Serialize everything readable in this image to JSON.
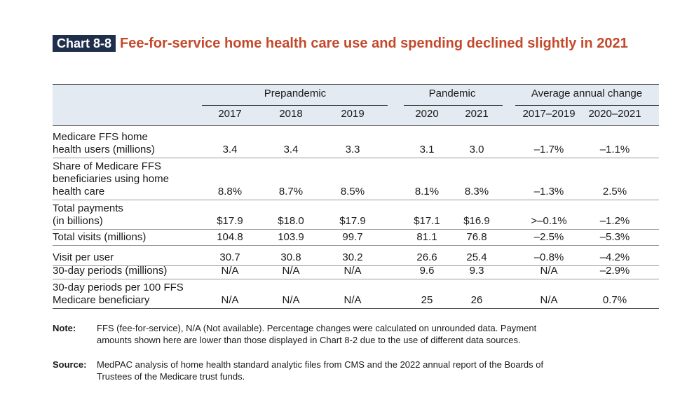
{
  "chart": {
    "badge": "Chart 8-8",
    "title": "Fee-for-service home health care use and spending declined slightly in 2021"
  },
  "table": {
    "groups": [
      "Prepandemic",
      "Pandemic",
      "Average annual change"
    ],
    "columns": [
      "2017",
      "2018",
      "2019",
      "2020",
      "2021",
      "2017–2019",
      "2020–2021"
    ],
    "rows": [
      {
        "label": [
          "Medicare FFS home",
          "health users (millions)"
        ],
        "values": [
          "3.4",
          "3.4",
          "3.3",
          "3.1",
          "3.0",
          "–1.7%",
          "–1.1%"
        ]
      },
      {
        "label": [
          "Share of Medicare FFS",
          "beneficiaries using home",
          "health care"
        ],
        "values": [
          "8.8%",
          "8.7%",
          "8.5%",
          "8.1%",
          "8.3%",
          "–1.3%",
          "2.5%"
        ]
      },
      {
        "label": [
          "Total payments",
          "(in billions)"
        ],
        "values": [
          "$17.9",
          "$18.0",
          "$17.9",
          "$17.1",
          "$16.9",
          ">–0.1%",
          "–1.2%"
        ]
      },
      {
        "label": [
          "Total visits (millions)"
        ],
        "values": [
          "104.8",
          "103.9",
          "99.7",
          "81.1",
          "76.8",
          "–2.5%",
          "–5.3%"
        ]
      },
      {
        "label": [
          "Visit per user"
        ],
        "values": [
          "30.7",
          "30.8",
          "30.2",
          "26.6",
          "25.4",
          "–0.8%",
          "–4.2%"
        ]
      },
      {
        "label": [
          "30-day periods (millions)"
        ],
        "values": [
          "N/A",
          "N/A",
          "N/A",
          "9.6",
          "9.3",
          "N/A",
          "–2.9%"
        ]
      },
      {
        "label": [
          "30-day periods per 100 FFS",
          "Medicare beneficiary"
        ],
        "values": [
          "N/A",
          "N/A",
          "N/A",
          "25",
          "26",
          "N/A",
          "0.7%"
        ]
      }
    ]
  },
  "note": {
    "label": "Note:",
    "lines": [
      "FFS (fee-for-service), N/A (Not available). Percentage changes were calculated on unrounded data. Payment",
      "amounts shown here are lower than those displayed in Chart 8-2 due to the use of different data sources."
    ]
  },
  "source": {
    "label": "Source:",
    "lines": [
      "MedPAC analysis of home health standard analytic files from CMS and the 2022 annual report of the Boards of",
      "Trustees of the Medicare trust funds."
    ]
  },
  "colors": {
    "badge_bg": "#1f2f4b",
    "title": "#c4492b",
    "header_bg": "#e4eaf1"
  }
}
